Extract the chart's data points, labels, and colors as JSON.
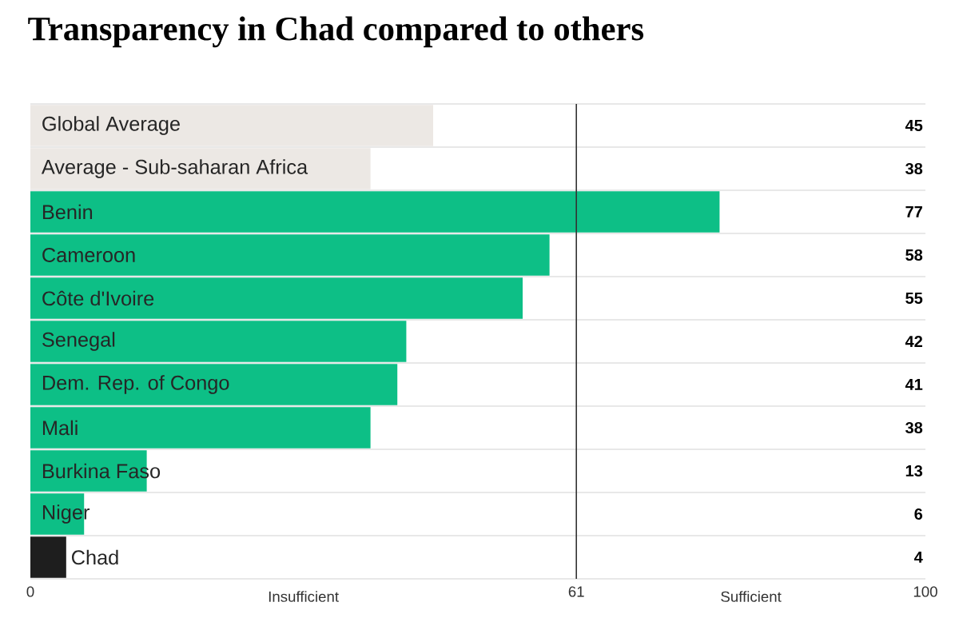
{
  "chart_data": {
    "type": "bar",
    "orientation": "horizontal",
    "title": "Transparency in Chad compared to others",
    "categories": [
      "Global Average",
      "Average - Sub-saharan Africa",
      "Benin",
      "Cameroon",
      "Côte d'Ivoire",
      "Senegal",
      "Dem. Rep. of Congo",
      "Mali",
      "Burkina Faso",
      "Niger",
      "Chad"
    ],
    "values": [
      45,
      38,
      77,
      58,
      55,
      42,
      41,
      38,
      13,
      6,
      4
    ],
    "colors": [
      "#ece8e4",
      "#ece8e4",
      "#0dbf86",
      "#0dbf86",
      "#0dbf86",
      "#0dbf86",
      "#0dbf86",
      "#0dbf86",
      "#0dbf86",
      "#0dbf86",
      "#1e1e1e"
    ],
    "xlim": [
      0,
      100
    ],
    "xticks": [
      0,
      61,
      100
    ],
    "ref_lines": [
      {
        "axis": "x",
        "value": 61,
        "color": "#333333"
      }
    ],
    "annotations": [
      "Insufficient",
      "Sufficient"
    ],
    "data_labels": true
  }
}
